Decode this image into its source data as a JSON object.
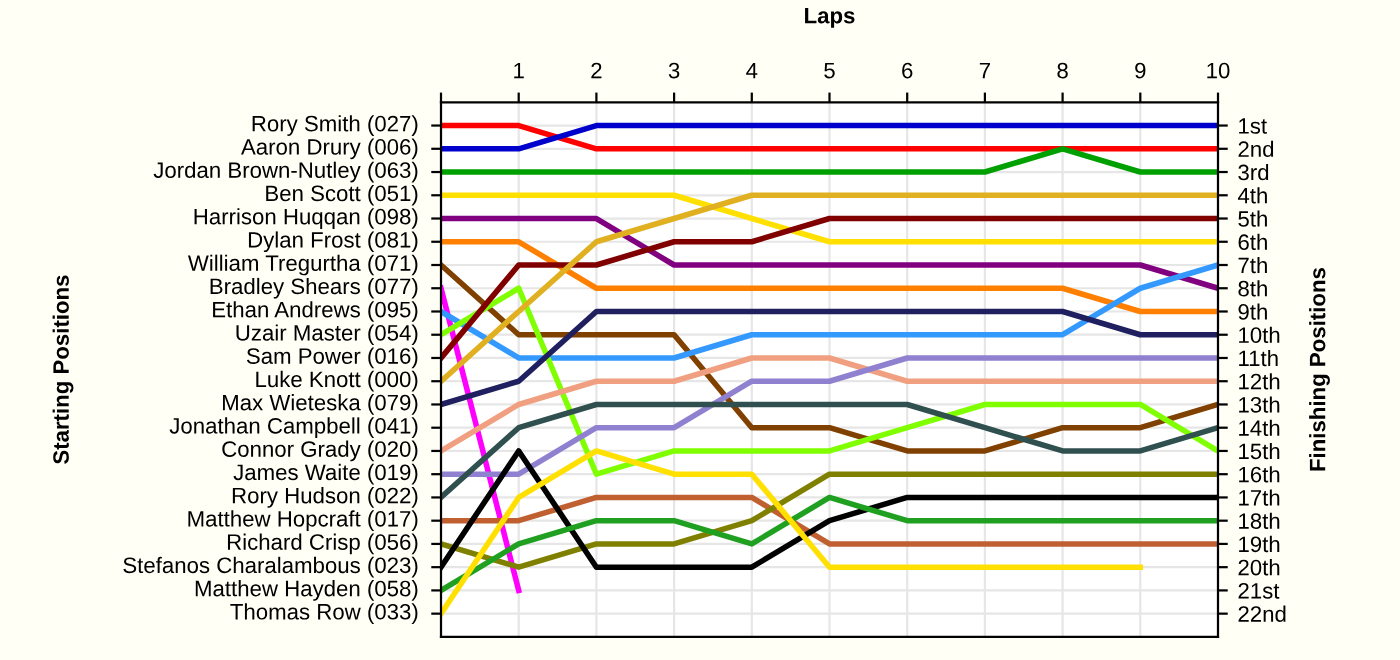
{
  "chart_data": {
    "type": "line",
    "xlabel": "Laps",
    "ylabel": "Finishing Positions",
    "x": [
      0,
      1,
      2,
      3,
      4,
      5,
      6,
      7,
      8,
      9,
      10
    ],
    "xlim": [
      0,
      10
    ],
    "xticks": [
      {
        "value": 0,
        "label": null
      },
      1,
      2,
      3,
      4,
      5,
      6,
      7,
      8,
      9,
      10
    ],
    "ylim": [
      23,
      0
    ],
    "yticks": [
      {
        "value": 1,
        "label": "1st"
      },
      {
        "value": 2,
        "label": "2nd"
      },
      {
        "value": 3,
        "label": "3rd"
      },
      {
        "value": 4,
        "label": "4th"
      },
      {
        "value": 5,
        "label": "5th"
      },
      {
        "value": 6,
        "label": "6th"
      },
      {
        "value": 7,
        "label": "7th"
      },
      {
        "value": 8,
        "label": "8th"
      },
      {
        "value": 9,
        "label": "9th"
      },
      {
        "value": 10,
        "label": "10th"
      },
      {
        "value": 11,
        "label": "11th"
      },
      {
        "value": 12,
        "label": "12th"
      },
      {
        "value": 13,
        "label": "13th"
      },
      {
        "value": 14,
        "label": "14th"
      },
      {
        "value": 15,
        "label": "15th"
      },
      {
        "value": 16,
        "label": "16th"
      },
      {
        "value": 17,
        "label": "17th"
      },
      {
        "value": 18,
        "label": "18th"
      },
      {
        "value": 19,
        "label": "19th"
      },
      {
        "value": 20,
        "label": "20th"
      },
      {
        "value": 21,
        "label": "21st"
      },
      {
        "value": 22,
        "label": "22nd"
      }
    ],
    "annotations": [
      "Starting Positions",
      "Rory Smith (027)",
      "Aaron Drury (006)",
      "Jordan Brown-Nutley (063)",
      "Ben Scott (051)",
      "Harrison Huqqan (098)",
      "Dylan Frost (081)",
      "William Tregurtha (071)",
      "Bradley Shears (077)",
      "Ethan Andrews (095)",
      "Uzair Master (054)",
      "Sam Power (016)",
      "Luke Knott (000)",
      "Max Wieteska (079)",
      "Jonathan Campbell (041)",
      "Connor Grady (020)",
      "James Waite (019)",
      "Rory Hudson (022)",
      "Matthew Hopcraft (017)",
      "Richard Crisp (056)",
      "Stefanos Charalambous (023)",
      "Matthew Hayden (058)",
      "Thomas Row (033)"
    ],
    "grid": true,
    "legend": false,
    "marker": "none",
    "line_style": "solid",
    "series": [
      {
        "color": "#ff0000",
        "values": [
          1,
          1,
          2,
          2,
          2,
          2,
          2,
          2,
          2,
          2,
          2
        ]
      },
      {
        "color": "#0000cc",
        "values": [
          2,
          2,
          1,
          1,
          1,
          1,
          1,
          1,
          1,
          1,
          1
        ]
      },
      {
        "color": "#00a000",
        "values": [
          3,
          3,
          3,
          3,
          3,
          3,
          3,
          3,
          2,
          3,
          3
        ]
      },
      {
        "color": "#ffe000",
        "values": [
          4,
          4,
          4,
          4,
          5,
          6,
          6,
          6,
          6,
          6,
          6
        ]
      },
      {
        "color": "#800080",
        "values": [
          5,
          5,
          5,
          7,
          7,
          7,
          7,
          7,
          7,
          7,
          8
        ]
      },
      {
        "color": "#ff8000",
        "values": [
          6,
          6,
          8,
          8,
          8,
          8,
          8,
          8,
          8,
          9,
          9
        ]
      },
      {
        "color": "#804000",
        "values": [
          7,
          10,
          10,
          10,
          14,
          14,
          15,
          15,
          14,
          14,
          13
        ]
      },
      {
        "color": "#ff00ff",
        "values": [
          8,
          21,
          null,
          null,
          null,
          null,
          null,
          null,
          null,
          null,
          null
        ]
      },
      {
        "color": "#3399ff",
        "values": [
          9,
          11,
          11,
          11,
          10,
          10,
          10,
          10,
          10,
          8,
          7
        ]
      },
      {
        "color": "#80ff00",
        "values": [
          10,
          8,
          16,
          15,
          15,
          15,
          14,
          13,
          13,
          13,
          15
        ]
      },
      {
        "color": "#800000",
        "values": [
          11,
          7,
          7,
          6,
          6,
          5,
          5,
          5,
          5,
          5,
          5
        ]
      },
      {
        "color": "#e0b020",
        "values": [
          12,
          9,
          6,
          5,
          4,
          4,
          4,
          4,
          4,
          4,
          4
        ]
      },
      {
        "color": "#202060",
        "values": [
          13,
          12,
          9,
          9,
          9,
          9,
          9,
          9,
          9,
          10,
          10
        ]
      },
      {
        "color": "#f0a080",
        "values": [
          15,
          13,
          12,
          12,
          11,
          11,
          12,
          12,
          12,
          12,
          12
        ]
      },
      {
        "color": "#9080d0",
        "values": [
          16,
          16,
          14,
          14,
          12,
          12,
          11,
          11,
          11,
          11,
          11
        ]
      },
      {
        "color": "#305050",
        "values": [
          17,
          14,
          13,
          13,
          13,
          13,
          13,
          14,
          15,
          15,
          14
        ]
      },
      {
        "color": "#c06030",
        "values": [
          18,
          18,
          17,
          17,
          17,
          19,
          19,
          19,
          19,
          19,
          19
        ]
      },
      {
        "color": "#808000",
        "values": [
          19,
          20,
          19,
          19,
          18,
          16,
          16,
          16,
          16,
          16,
          16
        ]
      },
      {
        "color": "#000000",
        "values": [
          20,
          15,
          20,
          20,
          20,
          18,
          17,
          17,
          17,
          17,
          17
        ]
      },
      {
        "color": "#20a020",
        "values": [
          21,
          19,
          18,
          18,
          19,
          17,
          18,
          18,
          18,
          18,
          18
        ]
      },
      {
        "color": "#ffe000",
        "values": [
          22,
          17,
          15,
          16,
          16,
          20,
          20,
          20,
          20,
          20,
          null
        ]
      }
    ]
  }
}
